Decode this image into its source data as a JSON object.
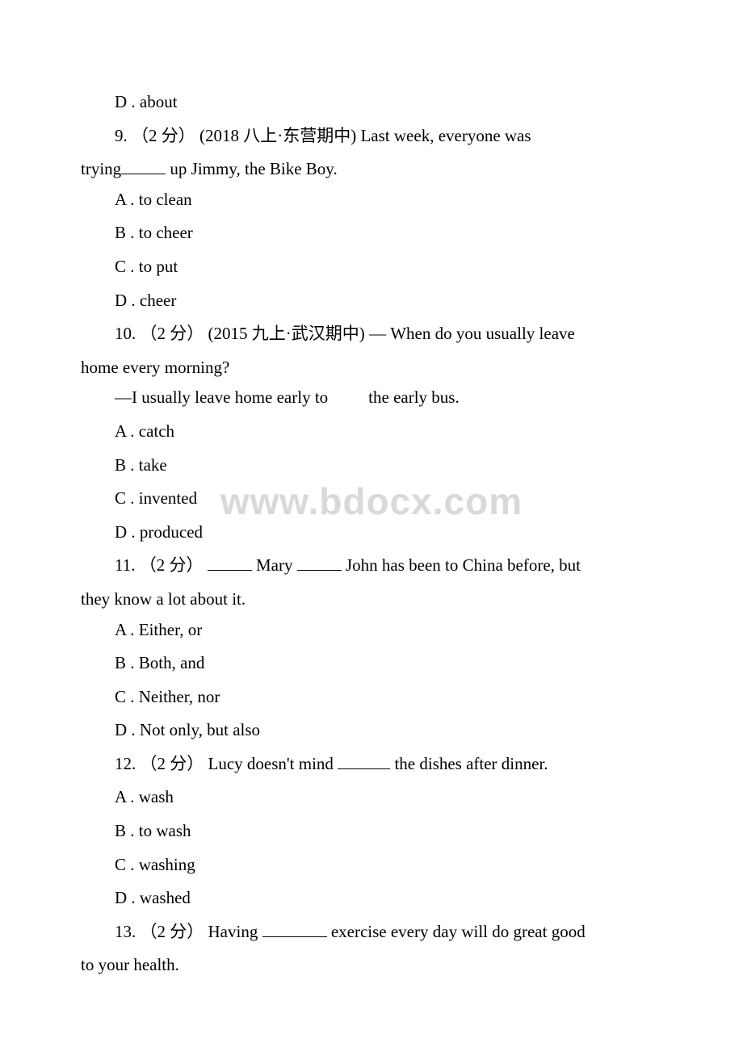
{
  "watermark": "www.bdocx.com",
  "q8_optD": "D . about",
  "q9": {
    "text_line1": "9. （2 分） (2018 八上·东营期中) Last week, everyone was",
    "text_line2": "trying",
    "text_line2b": " up Jimmy, the Bike Boy.",
    "optA": "A . to clean",
    "optB": "B . to cheer",
    "optC": "C . to put",
    "optD": "D . cheer"
  },
  "q10": {
    "text_line1": "10. （2 分） (2015 九上·武汉期中) — When do you usually leave",
    "text_line2": "home every morning?",
    "text_line3a": "—I usually leave home early to",
    "text_line3b": "the early bus.",
    "optA": "A .  catch",
    "optB": "B . take",
    "optC": "C . invented",
    "optD": "D .  produced"
  },
  "q11": {
    "text_pre": "11. （2 分） ",
    "text_mid": " Mary ",
    "text_post": " John has been to China before, but",
    "text_line2": "they know a lot about it.",
    "optA": "A .  Either, or",
    "optB": "B .  Both, and",
    "optC": "C .  Neither, nor",
    "optD": "D . Not only, but also"
  },
  "q12": {
    "text_pre": "12. （2 分） Lucy doesn't mind ",
    "text_post": " the dishes after dinner.",
    "optA": "A . wash",
    "optB": "B . to wash",
    "optC": "C . washing",
    "optD": "D . washed"
  },
  "q13": {
    "text_pre": "13. （2 分） Having ",
    "text_post": " exercise every day will do great good",
    "text_line2": "to your health."
  }
}
